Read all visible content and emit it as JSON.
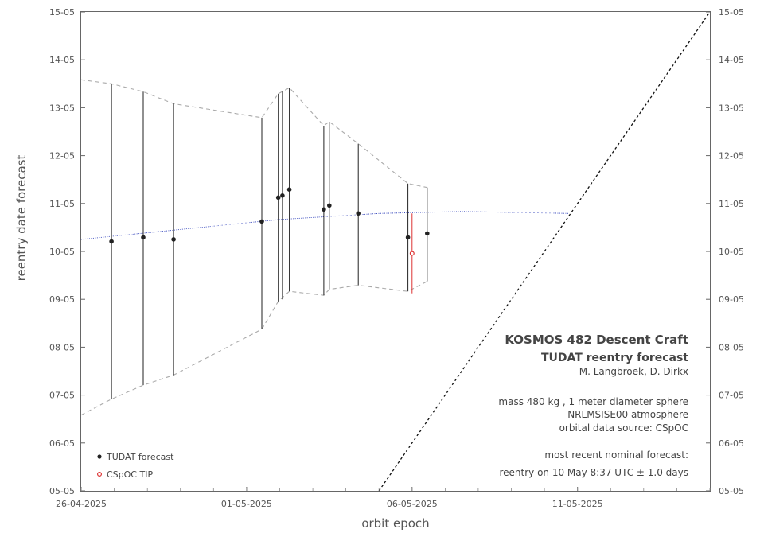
{
  "chart_data": {
    "type": "scatter",
    "xlabel": "orbit epoch",
    "ylabel": "reentry date forecast",
    "x_range": [
      "2025-04-26",
      "2025-05-15"
    ],
    "y_range": [
      "2025-05-05",
      "2025-05-15"
    ],
    "x_ticks": [
      {
        "date": "2025-04-26",
        "label": "26-04-2025"
      },
      {
        "date": "2025-05-01",
        "label": "01-05-2025"
      },
      {
        "date": "2025-05-06",
        "label": "06-05-2025"
      },
      {
        "date": "2025-05-11",
        "label": "11-05-2025"
      }
    ],
    "y_ticks": [
      {
        "date": "2025-05-05",
        "label": "05-05"
      },
      {
        "date": "2025-05-06",
        "label": "06-05"
      },
      {
        "date": "2025-05-07",
        "label": "07-05"
      },
      {
        "date": "2025-05-08",
        "label": "08-05"
      },
      {
        "date": "2025-05-09",
        "label": "09-05"
      },
      {
        "date": "2025-05-10",
        "label": "10-05"
      },
      {
        "date": "2025-05-11",
        "label": "11-05"
      },
      {
        "date": "2025-05-12",
        "label": "12-05"
      },
      {
        "date": "2025-05-13",
        "label": "13-05"
      },
      {
        "date": "2025-05-14",
        "label": "14-05"
      },
      {
        "date": "2025-05-15",
        "label": "15-05"
      }
    ],
    "series": [
      {
        "name": "TUDAT forecast",
        "color": "#222222",
        "points": [
          {
            "epoch": "2025-04-26 22:00",
            "forecast": "2025-05-10 05:00",
            "low": "2025-05-06 22:00",
            "high": "2025-05-13 12:00"
          },
          {
            "epoch": "2025-04-27 21:00",
            "forecast": "2025-05-10 07:00",
            "low": "2025-05-07 05:00",
            "high": "2025-05-13 08:00"
          },
          {
            "epoch": "2025-04-28 19:00",
            "forecast": "2025-05-10 06:00",
            "low": "2025-05-07 10:00",
            "high": "2025-05-13 02:00"
          },
          {
            "epoch": "2025-05-01 11:00",
            "forecast": "2025-05-10 15:00",
            "low": "2025-05-08 09:00",
            "high": "2025-05-12 19:00"
          },
          {
            "epoch": "2025-05-01 23:00",
            "forecast": "2025-05-11 03:00",
            "low": "2025-05-08 23:00",
            "high": "2025-05-13 07:00"
          },
          {
            "epoch": "2025-05-02 02:00",
            "forecast": "2025-05-11 04:00",
            "low": "2025-05-09 00:00",
            "high": "2025-05-13 08:00"
          },
          {
            "epoch": "2025-05-02 07:00",
            "forecast": "2025-05-11 07:00",
            "low": "2025-05-09 04:00",
            "high": "2025-05-13 10:00"
          },
          {
            "epoch": "2025-05-03 08:00",
            "forecast": "2025-05-10 21:00",
            "low": "2025-05-09 02:00",
            "high": "2025-05-12 15:00"
          },
          {
            "epoch": "2025-05-03 12:00",
            "forecast": "2025-05-10 23:00",
            "low": "2025-05-09 05:00",
            "high": "2025-05-12 17:00"
          },
          {
            "epoch": "2025-05-04 09:00",
            "forecast": "2025-05-10 19:00",
            "low": "2025-05-09 07:00",
            "high": "2025-05-12 06:00"
          },
          {
            "epoch": "2025-05-05 21:00",
            "forecast": "2025-05-10 07:00",
            "low": "2025-05-09 04:00",
            "high": "2025-05-11 10:00"
          },
          {
            "epoch": "2025-05-06 11:00",
            "forecast": "2025-05-10 09:00",
            "low": "2025-05-09 09:00",
            "high": "2025-05-11 08:00"
          }
        ]
      },
      {
        "name": "CSpOC TIP",
        "color": "#dd3333",
        "points": [
          {
            "epoch": "2025-05-06 00:00",
            "forecast": "2025-05-09 23:00",
            "low": "2025-05-09 03:00",
            "high": "2025-05-10 19:00"
          }
        ]
      }
    ],
    "envelope": {
      "color": "#aaaaaa",
      "upper": [
        {
          "epoch": "2025-04-26 00:00",
          "date": "2025-05-13 14:00"
        },
        {
          "epoch": "2025-04-26 22:00",
          "date": "2025-05-13 12:00"
        },
        {
          "epoch": "2025-04-27 21:00",
          "date": "2025-05-13 08:00"
        },
        {
          "epoch": "2025-04-28 19:00",
          "date": "2025-05-13 02:00"
        },
        {
          "epoch": "2025-05-01 11:00",
          "date": "2025-05-12 19:00"
        },
        {
          "epoch": "2025-05-01 23:00",
          "date": "2025-05-13 07:00"
        },
        {
          "epoch": "2025-05-02 07:00",
          "date": "2025-05-13 10:00"
        },
        {
          "epoch": "2025-05-03 08:00",
          "date": "2025-05-12 15:00"
        },
        {
          "epoch": "2025-05-03 12:00",
          "date": "2025-05-12 17:00"
        },
        {
          "epoch": "2025-05-04 09:00",
          "date": "2025-05-12 06:00"
        },
        {
          "epoch": "2025-05-05 21:00",
          "date": "2025-05-11 10:00"
        },
        {
          "epoch": "2025-05-06 11:00",
          "date": "2025-05-11 08:00"
        }
      ],
      "lower": [
        {
          "epoch": "2025-04-26 00:00",
          "date": "2025-05-06 14:00"
        },
        {
          "epoch": "2025-04-26 22:00",
          "date": "2025-05-06 22:00"
        },
        {
          "epoch": "2025-04-27 21:00",
          "date": "2025-05-07 05:00"
        },
        {
          "epoch": "2025-04-28 19:00",
          "date": "2025-05-07 10:00"
        },
        {
          "epoch": "2025-05-01 11:00",
          "date": "2025-05-08 09:00"
        },
        {
          "epoch": "2025-05-01 23:00",
          "date": "2025-05-08 23:00"
        },
        {
          "epoch": "2025-05-02 07:00",
          "date": "2025-05-09 04:00"
        },
        {
          "epoch": "2025-05-03 08:00",
          "date": "2025-05-09 02:00"
        },
        {
          "epoch": "2025-05-03 12:00",
          "date": "2025-05-09 05:00"
        },
        {
          "epoch": "2025-05-04 09:00",
          "date": "2025-05-09 07:00"
        },
        {
          "epoch": "2025-05-05 21:00",
          "date": "2025-05-09 04:00"
        },
        {
          "epoch": "2025-05-06 11:00",
          "date": "2025-05-09 09:00"
        }
      ]
    },
    "trend": {
      "color": "#3344bb",
      "points": [
        {
          "epoch": "2025-04-26 00:00",
          "date": "2025-05-10 06:00"
        },
        {
          "epoch": "2025-04-29 00:00",
          "date": "2025-05-10 11:00"
        },
        {
          "epoch": "2025-05-02 00:00",
          "date": "2025-05-10 16:00"
        },
        {
          "epoch": "2025-05-05 00:00",
          "date": "2025-05-10 19:00"
        },
        {
          "epoch": "2025-05-07 12:00",
          "date": "2025-05-10 20:00"
        },
        {
          "epoch": "2025-05-10 18:00",
          "date": "2025-05-10 19:00"
        }
      ]
    },
    "diagonal": [
      {
        "epoch": "2025-05-05 00:00",
        "date": "2025-05-05 00:00"
      },
      {
        "epoch": "2025-05-15 00:00",
        "date": "2025-05-15 00:00"
      }
    ],
    "annotation": {
      "title": "KOSMOS 482 Descent Craft",
      "subtitle": "TUDAT reentry forecast",
      "authors": "M. Langbroek,  D. Dirkx",
      "line1": "mass 480 kg ,  1 meter diameter  sphere",
      "line2": "NRLMSISE00  atmosphere",
      "line3": "orbital data source:  CSpOC",
      "line4": "most recent nominal forecast:",
      "line5": "reentry on 10 May 8:37 UTC ± 1.0 days"
    },
    "legend_position": "bottom-left",
    "grid": false
  }
}
